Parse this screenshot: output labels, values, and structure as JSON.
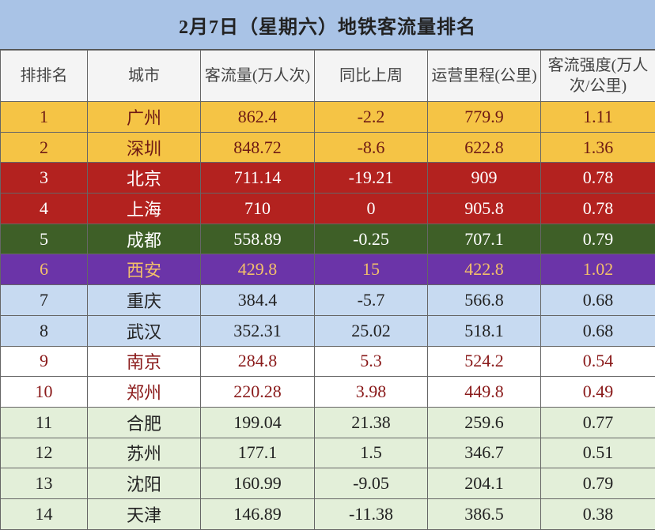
{
  "table": {
    "title": "2月7日（星期六）地铁客流量排名",
    "header": [
      "排排名",
      "城市",
      "客流量(万人次)",
      "同比上周",
      "运营里程(公里)",
      "客流强度(万人次/公里)"
    ],
    "rows": [
      [
        "1",
        "广州",
        "862.4",
        "-2.2",
        "779.9",
        "1.11"
      ],
      [
        "2",
        "深圳",
        "848.72",
        "-8.6",
        "622.8",
        "1.36"
      ],
      [
        "3",
        "北京",
        "711.14",
        "-19.21",
        "909",
        "0.78"
      ],
      [
        "4",
        "上海",
        "710",
        "0",
        "905.8",
        "0.78"
      ],
      [
        "5",
        "成都",
        "558.89",
        "-0.25",
        "707.1",
        "0.79"
      ],
      [
        "6",
        "西安",
        "429.8",
        "15",
        "422.8",
        "1.02"
      ],
      [
        "7",
        "重庆",
        "384.4",
        "-5.7",
        "566.8",
        "0.68"
      ],
      [
        "8",
        "武汉",
        "352.31",
        "25.02",
        "518.1",
        "0.68"
      ],
      [
        "9",
        "南京",
        "284.8",
        "5.3",
        "524.2",
        "0.54"
      ],
      [
        "10",
        "郑州",
        "220.28",
        "3.98",
        "449.8",
        "0.49"
      ],
      [
        "11",
        "合肥",
        "199.04",
        "21.38",
        "259.6",
        "0.77"
      ],
      [
        "12",
        "苏州",
        "177.1",
        "1.5",
        "346.7",
        "0.51"
      ],
      [
        "13",
        "沈阳",
        "160.99",
        "-9.05",
        "204.1",
        "0.79"
      ],
      [
        "14",
        "天津",
        "146.89",
        "-11.38",
        "386.5",
        "0.38"
      ]
    ]
  }
}
